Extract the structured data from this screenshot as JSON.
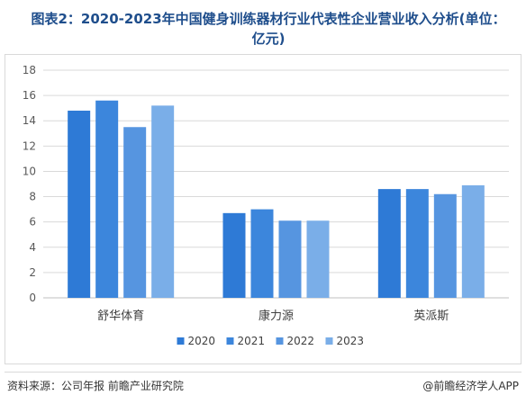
{
  "title": "图表2：2020-2023年中国健身训练器材行业代表性企业营业收入分析(单位：亿元)",
  "source": "资料来源：公司年报 前瞻产业研究院",
  "brand": "@前瞻经济学人APP",
  "colors": {
    "2020": "#2e7ad6",
    "2021": "#3c86dc",
    "2022": "#5695e0",
    "2023": "#7aaee8",
    "grid": "#d9d9d9",
    "axis": "#bfbfbf"
  },
  "chart_data": {
    "type": "bar",
    "title": "图表2：2020-2023年中国健身训练器材行业代表性企业营业收入分析(单位：亿元)",
    "categories": [
      "舒华体育",
      "康力源",
      "英派斯"
    ],
    "series": [
      {
        "name": "2020",
        "values": [
          14.8,
          6.7,
          8.6
        ]
      },
      {
        "name": "2021",
        "values": [
          15.6,
          7.0,
          8.6
        ]
      },
      {
        "name": "2022",
        "values": [
          13.5,
          6.1,
          8.2
        ]
      },
      {
        "name": "2023",
        "values": [
          15.2,
          6.1,
          8.9
        ]
      }
    ],
    "ylim": [
      0,
      18
    ],
    "yticks": [
      0,
      2,
      4,
      6,
      8,
      10,
      12,
      14,
      16,
      18
    ],
    "grid": true,
    "legend": "bottom"
  }
}
